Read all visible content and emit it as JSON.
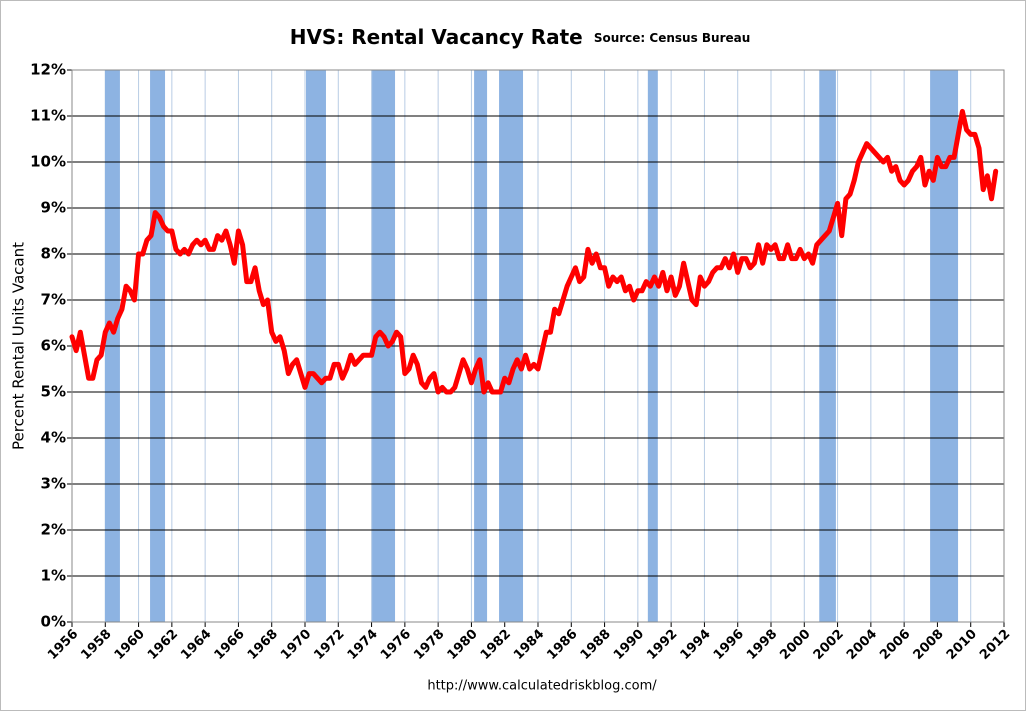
{
  "chart_data": {
    "type": "line",
    "title": "HVS: Rental Vacancy Rate",
    "subtitle": "Source: Census Bureau",
    "y_label": "Percent Rental Units Vacant",
    "annotation": "http://www.calculatedriskblog.com/",
    "xlim": [
      1956,
      2012
    ],
    "xticks": [
      1956,
      1958,
      1960,
      1962,
      1964,
      1966,
      1968,
      1970,
      1972,
      1974,
      1976,
      1978,
      1980,
      1982,
      1984,
      1986,
      1988,
      1990,
      1992,
      1994,
      1996,
      1998,
      2000,
      2002,
      2004,
      2006,
      2008,
      2010,
      2012
    ],
    "ylim": [
      0,
      12
    ],
    "yticks": [
      {
        "value": 0,
        "label": "0%"
      },
      {
        "value": 1,
        "label": "1%"
      },
      {
        "value": 2,
        "label": "2%"
      },
      {
        "value": 3,
        "label": "3%"
      },
      {
        "value": 4,
        "label": "4%"
      },
      {
        "value": 5,
        "label": "5%"
      },
      {
        "value": 6,
        "label": "6%"
      },
      {
        "value": 7,
        "label": "7%"
      },
      {
        "value": 8,
        "label": "8%"
      },
      {
        "value": 9,
        "label": "9%"
      },
      {
        "value": 10,
        "label": "10%"
      },
      {
        "value": 11,
        "label": "11%"
      },
      {
        "value": 12,
        "label": "12%"
      }
    ],
    "grid": true,
    "recession_color": "#8db3e2",
    "recessions": [
      [
        1957.98,
        1958.88
      ],
      [
        1960.69,
        1961.59
      ],
      [
        1970.06,
        1971.26
      ],
      [
        1974.03,
        1975.41
      ],
      [
        1980.16,
        1980.94
      ],
      [
        1981.66,
        1983.1
      ],
      [
        1990.6,
        1991.2
      ],
      [
        2000.9,
        2001.9
      ],
      [
        2007.56,
        2009.24
      ]
    ],
    "color": "#ff0000",
    "x": [
      1956,
      1956.25,
      1956.5,
      1956.75,
      1957,
      1957.25,
      1957.5,
      1957.75,
      1958,
      1958.25,
      1958.5,
      1958.75,
      1959,
      1959.25,
      1959.5,
      1959.75,
      1960,
      1960.25,
      1960.5,
      1960.75,
      1961,
      1961.25,
      1961.5,
      1961.75,
      1962,
      1962.25,
      1962.5,
      1962.75,
      1963,
      1963.25,
      1963.5,
      1963.75,
      1964,
      1964.25,
      1964.5,
      1964.75,
      1965,
      1965.25,
      1965.5,
      1965.75,
      1966,
      1966.25,
      1966.5,
      1966.75,
      1967,
      1967.25,
      1967.5,
      1967.75,
      1968,
      1968.25,
      1968.5,
      1968.75,
      1969,
      1969.25,
      1969.5,
      1969.75,
      1970,
      1970.25,
      1970.5,
      1970.75,
      1971,
      1971.25,
      1971.5,
      1971.75,
      1972,
      1972.25,
      1972.5,
      1972.75,
      1973,
      1973.25,
      1973.5,
      1973.75,
      1974,
      1974.25,
      1974.5,
      1974.75,
      1975,
      1975.25,
      1975.5,
      1975.75,
      1976,
      1976.25,
      1976.5,
      1976.75,
      1977,
      1977.25,
      1977.5,
      1977.75,
      1978,
      1978.25,
      1978.5,
      1978.75,
      1979,
      1979.25,
      1979.5,
      1979.75,
      1980,
      1980.25,
      1980.5,
      1980.75,
      1981,
      1981.25,
      1981.5,
      1981.75,
      1982,
      1982.25,
      1982.5,
      1982.75,
      1983,
      1983.25,
      1983.5,
      1983.75,
      1984,
      1984.25,
      1984.5,
      1984.75,
      1985,
      1985.25,
      1985.5,
      1985.75,
      1986,
      1986.25,
      1986.5,
      1986.75,
      1987,
      1987.25,
      1987.5,
      1987.75,
      1988,
      1988.25,
      1988.5,
      1988.75,
      1989,
      1989.25,
      1989.5,
      1989.75,
      1990,
      1990.25,
      1990.5,
      1990.75,
      1991,
      1991.25,
      1991.5,
      1991.75,
      1992,
      1992.25,
      1992.5,
      1992.75,
      1993,
      1993.25,
      1993.5,
      1993.75,
      1994,
      1994.25,
      1994.5,
      1994.75,
      1995,
      1995.25,
      1995.5,
      1995.75,
      1996,
      1996.25,
      1996.5,
      1996.75,
      1997,
      1997.25,
      1997.5,
      1997.75,
      1998,
      1998.25,
      1998.5,
      1998.75,
      1999,
      1999.25,
      1999.5,
      1999.75,
      2000,
      2000.25,
      2000.5,
      2000.75,
      2001,
      2001.25,
      2001.5,
      2001.75,
      2002,
      2002.25,
      2002.5,
      2002.75,
      2003,
      2003.25,
      2003.5,
      2003.75,
      2004,
      2004.25,
      2004.5,
      2004.75,
      2005,
      2005.25,
      2005.5,
      2005.75,
      2006,
      2006.25,
      2006.5,
      2006.75,
      2007,
      2007.25,
      2007.5,
      2007.75,
      2008,
      2008.25,
      2008.5,
      2008.75,
      2009,
      2009.25,
      2009.5,
      2009.75,
      2010,
      2010.25,
      2010.5,
      2010.75,
      2011,
      2011.25,
      2011.5
    ],
    "values": [
      6.2,
      5.9,
      6.3,
      5.8,
      5.3,
      5.3,
      5.7,
      5.8,
      6.3,
      6.5,
      6.3,
      6.6,
      6.8,
      7.3,
      7.2,
      7.0,
      8.0,
      8.0,
      8.3,
      8.4,
      8.9,
      8.8,
      8.6,
      8.5,
      8.5,
      8.1,
      8.0,
      8.1,
      8.0,
      8.2,
      8.3,
      8.2,
      8.3,
      8.1,
      8.1,
      8.4,
      8.3,
      8.5,
      8.2,
      7.8,
      8.5,
      8.2,
      7.4,
      7.4,
      7.7,
      7.2,
      6.9,
      7.0,
      6.3,
      6.1,
      6.2,
      5.9,
      5.4,
      5.6,
      5.7,
      5.4,
      5.1,
      5.4,
      5.4,
      5.3,
      5.2,
      5.3,
      5.3,
      5.6,
      5.6,
      5.3,
      5.5,
      5.8,
      5.6,
      5.7,
      5.8,
      5.8,
      5.8,
      6.2,
      6.3,
      6.2,
      6.0,
      6.1,
      6.3,
      6.2,
      5.4,
      5.5,
      5.8,
      5.6,
      5.2,
      5.1,
      5.3,
      5.4,
      5.0,
      5.1,
      5.0,
      5.0,
      5.1,
      5.4,
      5.7,
      5.5,
      5.2,
      5.5,
      5.7,
      5.0,
      5.2,
      5.0,
      5.0,
      5.0,
      5.3,
      5.2,
      5.5,
      5.7,
      5.5,
      5.8,
      5.5,
      5.6,
      5.5,
      5.9,
      6.3,
      6.3,
      6.8,
      6.7,
      7.0,
      7.3,
      7.5,
      7.7,
      7.4,
      7.5,
      8.1,
      7.8,
      8.0,
      7.7,
      7.7,
      7.3,
      7.5,
      7.4,
      7.5,
      7.2,
      7.3,
      7.0,
      7.2,
      7.2,
      7.4,
      7.3,
      7.5,
      7.3,
      7.6,
      7.2,
      7.5,
      7.1,
      7.3,
      7.8,
      7.4,
      7.0,
      6.9,
      7.5,
      7.3,
      7.4,
      7.6,
      7.7,
      7.7,
      7.9,
      7.7,
      8.0,
      7.6,
      7.9,
      7.9,
      7.7,
      7.8,
      8.2,
      7.8,
      8.2,
      8.1,
      8.2,
      7.9,
      7.9,
      8.2,
      7.9,
      7.9,
      8.1,
      7.9,
      8.0,
      7.8,
      8.2,
      8.3,
      8.4,
      8.5,
      8.8,
      9.1,
      8.4,
      9.2,
      9.3,
      9.6,
      10.0,
      10.2,
      10.4,
      10.3,
      10.2,
      10.1,
      10.0,
      10.1,
      9.8,
      9.9,
      9.6,
      9.5,
      9.6,
      9.8,
      9.9,
      10.1,
      9.5,
      9.8,
      9.6,
      10.1,
      9.9,
      9.9,
      10.1,
      10.1,
      10.6,
      11.1,
      10.7,
      10.6,
      10.6,
      10.3,
      9.4,
      9.7,
      9.2,
      9.8
    ]
  }
}
